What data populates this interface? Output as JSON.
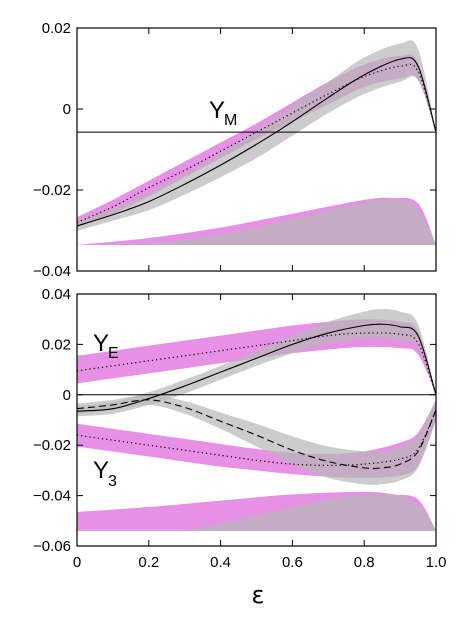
{
  "colors": {
    "pink": "#e487e4",
    "gray": "#b7b9b7",
    "line": "#000000"
  },
  "xlabel": "ε",
  "x_ticks": [
    "0",
    "0.2",
    "0.4",
    "0.6",
    "0.8",
    "1.0"
  ],
  "chart_data": [
    {
      "type": "area",
      "panel": "top",
      "xlim": [
        0,
        1
      ],
      "ylim": [
        -0.04,
        0.03
      ],
      "y_ticks": [
        "0.02",
        "0",
        "−0.02",
        "−0.04"
      ],
      "annotation": {
        "main": "Y",
        "sub": "M"
      },
      "series": [
        {
          "band_color": "pink",
          "x": [
            0,
            0.1,
            0.2,
            0.3,
            0.4,
            0.5,
            0.6,
            0.7,
            0.8,
            0.9,
            0.95,
            1.0
          ],
          "upper": [
            -0.0245,
            -0.0195,
            -0.014,
            -0.0085,
            -0.003,
            0.0025,
            0.0085,
            0.0145,
            0.0195,
            0.022,
            0.02,
            0.0
          ],
          "lower": [
            -0.0275,
            -0.0235,
            -0.0185,
            -0.013,
            -0.0075,
            -0.002,
            0.003,
            0.008,
            0.013,
            0.0155,
            0.015,
            0.0
          ],
          "mid": [
            -0.026,
            -0.0215,
            -0.016,
            -0.011,
            -0.0055,
            0.0,
            0.0055,
            0.011,
            0.016,
            0.019,
            0.0175,
            0.0
          ],
          "style": "dotted"
        },
        {
          "band_color": "gray",
          "x": [
            0,
            0.1,
            0.2,
            0.3,
            0.4,
            0.5,
            0.6,
            0.7,
            0.8,
            0.9,
            0.95,
            1.0
          ],
          "upper": [
            -0.0255,
            -0.022,
            -0.0175,
            -0.012,
            -0.006,
            0.0005,
            0.0075,
            0.0145,
            0.0215,
            0.0255,
            0.024,
            0.0
          ],
          "lower": [
            -0.0285,
            -0.0255,
            -0.0225,
            -0.018,
            -0.013,
            -0.0075,
            -0.001,
            0.0055,
            0.011,
            0.0145,
            0.015,
            0.0
          ],
          "mid": [
            -0.027,
            -0.0238,
            -0.02,
            -0.015,
            -0.0095,
            -0.0035,
            0.003,
            0.01,
            0.0165,
            0.021,
            0.019,
            0.0
          ],
          "style": "solid"
        },
        {
          "band_color": "pink",
          "x": [
            0,
            0.2,
            0.4,
            0.6,
            0.8,
            0.88,
            0.95,
            1.0
          ],
          "upper": [
            -0.0325,
            -0.0305,
            -0.0275,
            -0.0235,
            -0.0195,
            -0.019,
            -0.0205,
            -0.0325
          ],
          "lower": [
            -0.0325,
            -0.0325,
            -0.0325,
            -0.0325,
            -0.0325,
            -0.0325,
            -0.0325,
            -0.0325
          ],
          "style": "none"
        },
        {
          "band_color": "gray",
          "x": [
            0.15,
            0.3,
            0.45,
            0.6,
            0.75,
            0.85,
            0.93,
            0.97,
            1.0
          ],
          "upper": [
            -0.0325,
            -0.031,
            -0.0285,
            -0.025,
            -0.0215,
            -0.0195,
            -0.0205,
            -0.026,
            -0.0325
          ],
          "lower": [
            -0.0325,
            -0.0325,
            -0.0325,
            -0.0325,
            -0.0325,
            -0.0325,
            -0.0325,
            -0.0325,
            -0.0325
          ],
          "style": "none"
        }
      ]
    },
    {
      "type": "area",
      "panel": "bottom",
      "xlim": [
        0,
        1
      ],
      "ylim": [
        -0.06,
        0.04
      ],
      "y_ticks": [
        "0.04",
        "0.02",
        "0",
        "−0.02",
        "−0.04",
        "−0.06"
      ],
      "annotations": [
        {
          "main": "Y",
          "sub": "E"
        },
        {
          "main": "Y",
          "sub": "3"
        }
      ],
      "series": [
        {
          "band_color": "pink",
          "x": [
            0,
            0.1,
            0.2,
            0.3,
            0.4,
            0.5,
            0.6,
            0.7,
            0.8,
            0.9,
            0.95,
            1.0
          ],
          "upper": [
            0.0155,
            0.0175,
            0.0195,
            0.0215,
            0.0235,
            0.0255,
            0.0275,
            0.029,
            0.03,
            0.029,
            0.025,
            0.0
          ],
          "lower": [
            0.0045,
            0.0065,
            0.0085,
            0.0105,
            0.0125,
            0.0145,
            0.0165,
            0.018,
            0.019,
            0.0185,
            0.016,
            0.0
          ],
          "mid": [
            0.0095,
            0.0115,
            0.0135,
            0.0155,
            0.0175,
            0.0195,
            0.0215,
            0.0235,
            0.0245,
            0.024,
            0.0205,
            0.0
          ],
          "style": "dotted"
        },
        {
          "band_color": "gray",
          "x": [
            0,
            0.1,
            0.2,
            0.3,
            0.4,
            0.5,
            0.6,
            0.7,
            0.8,
            0.85,
            0.9,
            0.95,
            1.0
          ],
          "upper": [
            -0.0045,
            -0.003,
            0.001,
            0.006,
            0.0115,
            0.0175,
            0.0235,
            0.029,
            0.033,
            0.034,
            0.033,
            0.028,
            0.0
          ],
          "lower": [
            -0.0085,
            -0.0075,
            -0.004,
            0.0005,
            0.006,
            0.0115,
            0.0165,
            0.0205,
            0.0225,
            0.0225,
            0.0215,
            0.019,
            0.0
          ],
          "mid": [
            -0.0065,
            -0.0055,
            -0.0015,
            0.0035,
            0.009,
            0.0145,
            0.02,
            0.0245,
            0.0275,
            0.028,
            0.027,
            0.0235,
            0.0
          ],
          "style": "solid"
        },
        {
          "band_color": "pink",
          "x": [
            0,
            0.1,
            0.2,
            0.3,
            0.4,
            0.5,
            0.6,
            0.7,
            0.8,
            0.9,
            0.95,
            1.0
          ],
          "upper": [
            -0.0115,
            -0.0135,
            -0.0155,
            -0.0175,
            -0.0195,
            -0.0215,
            -0.023,
            -0.0235,
            -0.0225,
            -0.019,
            -0.015,
            -0.002
          ],
          "lower": [
            -0.0205,
            -0.0225,
            -0.0245,
            -0.0265,
            -0.0285,
            -0.03,
            -0.0315,
            -0.0325,
            -0.033,
            -0.032,
            -0.028,
            -0.01
          ],
          "mid": [
            -0.016,
            -0.018,
            -0.02,
            -0.022,
            -0.024,
            -0.026,
            -0.0275,
            -0.028,
            -0.0275,
            -0.0255,
            -0.0215,
            -0.006
          ],
          "style": "dotted"
        },
        {
          "band_color": "gray",
          "x": [
            0,
            0.1,
            0.2,
            0.3,
            0.4,
            0.5,
            0.6,
            0.7,
            0.8,
            0.85,
            0.9,
            0.95,
            1.0
          ],
          "upper": [
            -0.0035,
            -0.002,
            0.0,
            -0.0025,
            -0.007,
            -0.0115,
            -0.0165,
            -0.0205,
            -0.0225,
            -0.0225,
            -0.0205,
            -0.016,
            -0.002
          ],
          "lower": [
            -0.0075,
            -0.006,
            -0.004,
            -0.0075,
            -0.0135,
            -0.0205,
            -0.0275,
            -0.033,
            -0.0355,
            -0.0355,
            -0.034,
            -0.029,
            -0.01
          ],
          "mid": [
            -0.0055,
            -0.004,
            -0.002,
            -0.005,
            -0.0105,
            -0.016,
            -0.022,
            -0.0265,
            -0.029,
            -0.029,
            -0.0275,
            -0.0225,
            -0.006
          ],
          "style": "dashed"
        },
        {
          "band_color": "pink",
          "x": [
            0,
            0.2,
            0.4,
            0.6,
            0.8,
            0.88,
            0.95,
            1.0
          ],
          "upper": [
            -0.0465,
            -0.0445,
            -0.042,
            -0.0395,
            -0.0385,
            -0.0395,
            -0.0415,
            -0.054
          ],
          "lower": [
            -0.054,
            -0.054,
            -0.054,
            -0.054,
            -0.054,
            -0.054,
            -0.054,
            -0.054
          ],
          "style": "none"
        },
        {
          "band_color": "gray",
          "x": [
            0.3,
            0.45,
            0.6,
            0.72,
            0.82,
            0.9,
            0.96,
            1.0
          ],
          "upper": [
            -0.054,
            -0.0495,
            -0.0445,
            -0.041,
            -0.0395,
            -0.04,
            -0.045,
            -0.054
          ],
          "lower": [
            -0.054,
            -0.054,
            -0.054,
            -0.054,
            -0.054,
            -0.054,
            -0.054,
            -0.054
          ],
          "style": "none"
        }
      ]
    }
  ]
}
